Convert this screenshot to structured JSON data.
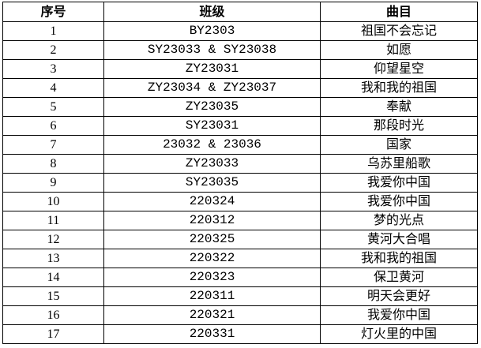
{
  "headers": [
    "序号",
    "班级",
    "曲目"
  ],
  "rows": [
    [
      "1",
      "BY2303",
      "祖国不会忘记"
    ],
    [
      "2",
      "SY23033 & SY23038",
      "如愿"
    ],
    [
      "3",
      "ZY23031",
      "仰望星空"
    ],
    [
      "4",
      "ZY23034 & ZY23037",
      "我和我的祖国"
    ],
    [
      "5",
      "ZY23035",
      "奉献"
    ],
    [
      "6",
      "SY23031",
      "那段时光"
    ],
    [
      "7",
      "23032 & 23036",
      "国家"
    ],
    [
      "8",
      "ZY23033",
      "乌苏里船歌"
    ],
    [
      "9",
      "SY23035",
      "我爱你中国"
    ],
    [
      "10",
      "220324",
      "我爱你中国"
    ],
    [
      "11",
      "220312",
      "梦的光点"
    ],
    [
      "12",
      "220325",
      "黄河大合唱"
    ],
    [
      "13",
      "220322",
      "我和我的祖国"
    ],
    [
      "14",
      "220323",
      "保卫黄河"
    ],
    [
      "15",
      "220311",
      "明天会更好"
    ],
    [
      "16",
      "220321",
      "我爱你中国"
    ],
    [
      "17",
      "220331",
      "灯火里的中国"
    ]
  ]
}
